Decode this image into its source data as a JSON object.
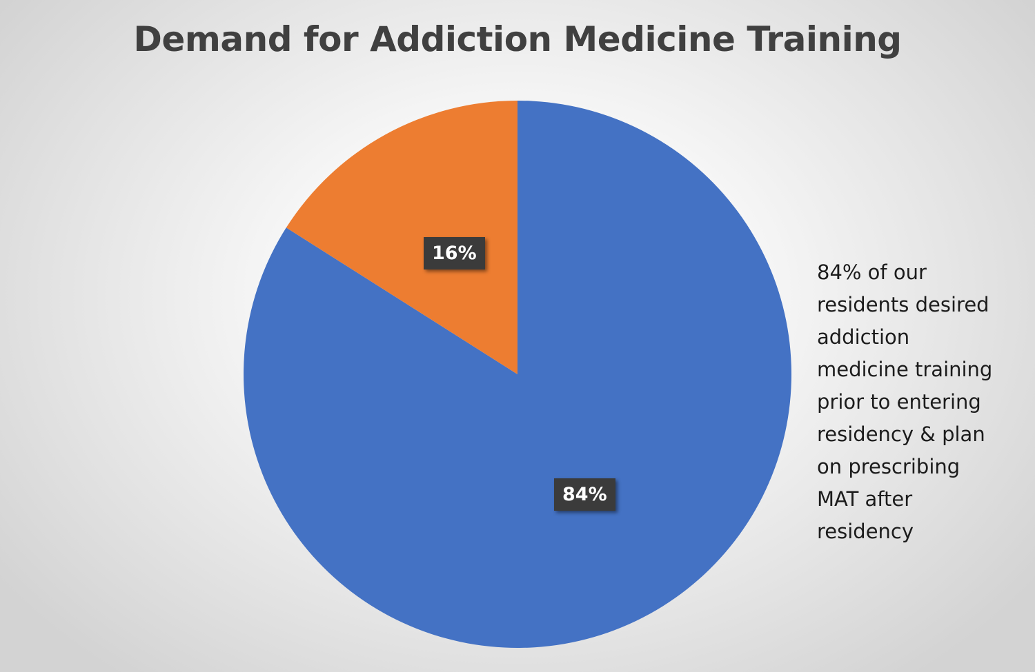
{
  "chart_data": {
    "type": "pie",
    "title": "Demand for Addiction Medicine Training",
    "slices": [
      {
        "value": 84,
        "label": "84%",
        "color": "#4472c4"
      },
      {
        "value": 16,
        "label": "16%",
        "color": "#ed7d31"
      }
    ],
    "start_angle": "12 o'clock",
    "direction": "clockwise",
    "legend": "none",
    "annotation": "84% of our\nresidents desired\naddiction\nmedicine training\nprior to entering\nresidency & plan\non prescribing\nMAT after\nresidency"
  }
}
